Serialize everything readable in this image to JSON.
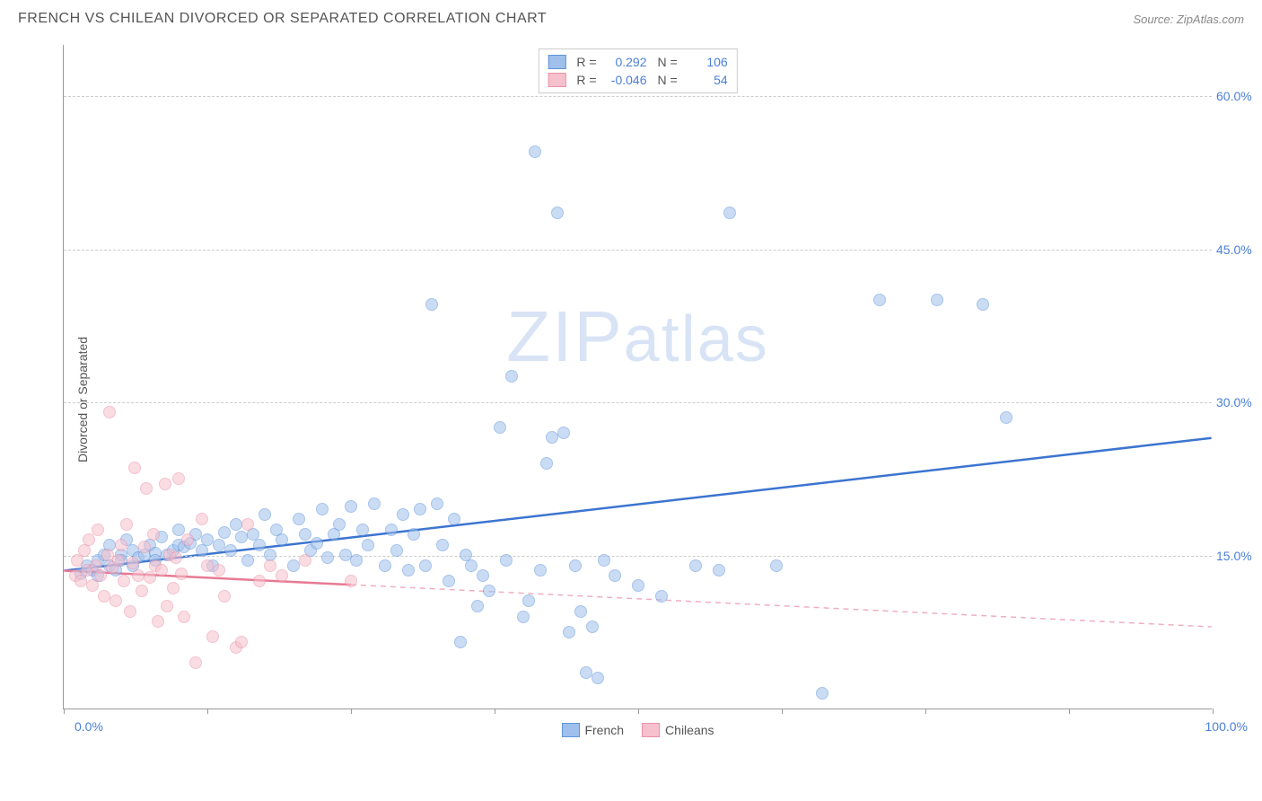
{
  "header": {
    "title": "FRENCH VS CHILEAN DIVORCED OR SEPARATED CORRELATION CHART",
    "source": "Source: ZipAtlas.com"
  },
  "chart": {
    "type": "scatter",
    "y_axis_title": "Divorced or Separated",
    "xlim": [
      0,
      100
    ],
    "ylim": [
      0,
      65
    ],
    "x_label_min": "0.0%",
    "x_label_max": "100.0%",
    "x_tick_positions": [
      0,
      12.5,
      25,
      37.5,
      50,
      62.5,
      75,
      87.5,
      100
    ],
    "y_gridlines": [
      {
        "value": 15,
        "label": "15.0%"
      },
      {
        "value": 30,
        "label": "30.0%"
      },
      {
        "value": 45,
        "label": "45.0%"
      },
      {
        "value": 60,
        "label": "60.0%"
      }
    ],
    "background_color": "#ffffff",
    "grid_color": "#cccccc",
    "axis_color": "#999999",
    "label_color": "#4a7fd8",
    "watermark": "ZIPatlas",
    "point_radius": 7,
    "point_opacity": 0.55,
    "series": [
      {
        "name": "French",
        "fill_color": "#9fc0ec",
        "stroke_color": "#5f94db",
        "trend_color": "#3c74d0",
        "trend_solid_until": 100,
        "trend": {
          "x1": 0,
          "y1": 13.5,
          "x2": 100,
          "y2": 26.5
        },
        "R": "0.292",
        "N": "106",
        "points": [
          [
            1.5,
            13.2
          ],
          [
            2,
            14
          ],
          [
            2.5,
            13.5
          ],
          [
            3,
            14.5
          ],
          [
            3,
            13
          ],
          [
            3.5,
            15
          ],
          [
            4,
            14
          ],
          [
            4,
            16
          ],
          [
            4.5,
            13.5
          ],
          [
            5,
            15
          ],
          [
            5,
            14.5
          ],
          [
            5.5,
            16.5
          ],
          [
            6,
            15.5
          ],
          [
            6,
            14
          ],
          [
            6.5,
            14.8
          ],
          [
            7,
            15
          ],
          [
            7.5,
            16
          ],
          [
            8,
            15.2
          ],
          [
            8,
            14.5
          ],
          [
            8.5,
            16.8
          ],
          [
            9,
            15
          ],
          [
            9.5,
            15.5
          ],
          [
            10,
            16
          ],
          [
            10,
            17.5
          ],
          [
            10.5,
            15.8
          ],
          [
            11,
            16.2
          ],
          [
            11.5,
            17
          ],
          [
            12,
            15.5
          ],
          [
            12.5,
            16.5
          ],
          [
            13,
            14
          ],
          [
            13.5,
            16
          ],
          [
            14,
            17.2
          ],
          [
            14.5,
            15.5
          ],
          [
            15,
            18
          ],
          [
            15.5,
            16.8
          ],
          [
            16,
            14.5
          ],
          [
            16.5,
            17
          ],
          [
            17,
            16
          ],
          [
            17.5,
            19
          ],
          [
            18,
            15
          ],
          [
            18.5,
            17.5
          ],
          [
            19,
            16.5
          ],
          [
            20,
            14
          ],
          [
            20.5,
            18.5
          ],
          [
            21,
            17
          ],
          [
            21.5,
            15.5
          ],
          [
            22,
            16.2
          ],
          [
            22.5,
            19.5
          ],
          [
            23,
            14.8
          ],
          [
            23.5,
            17
          ],
          [
            24,
            18
          ],
          [
            24.5,
            15
          ],
          [
            25,
            19.8
          ],
          [
            25.5,
            14.5
          ],
          [
            26,
            17.5
          ],
          [
            26.5,
            16
          ],
          [
            27,
            20
          ],
          [
            28,
            14
          ],
          [
            28.5,
            17.5
          ],
          [
            29,
            15.5
          ],
          [
            29.5,
            19
          ],
          [
            30,
            13.5
          ],
          [
            30.5,
            17
          ],
          [
            31,
            19.5
          ],
          [
            31.5,
            14
          ],
          [
            32,
            39.5
          ],
          [
            32.5,
            20
          ],
          [
            33,
            16
          ],
          [
            33.5,
            12.5
          ],
          [
            34,
            18.5
          ],
          [
            34.5,
            6.5
          ],
          [
            35,
            15
          ],
          [
            35.5,
            14
          ],
          [
            36,
            10
          ],
          [
            36.5,
            13
          ],
          [
            37,
            11.5
          ],
          [
            38,
            27.5
          ],
          [
            38.5,
            14.5
          ],
          [
            39,
            32.5
          ],
          [
            40,
            9
          ],
          [
            40.5,
            10.5
          ],
          [
            41,
            54.5
          ],
          [
            41.5,
            13.5
          ],
          [
            42,
            24
          ],
          [
            42.5,
            26.5
          ],
          [
            43,
            48.5
          ],
          [
            43.5,
            27
          ],
          [
            44,
            7.5
          ],
          [
            44.5,
            14
          ],
          [
            45,
            9.5
          ],
          [
            45.5,
            3.5
          ],
          [
            46,
            8
          ],
          [
            46.5,
            3
          ],
          [
            47,
            14.5
          ],
          [
            48,
            13
          ],
          [
            50,
            12
          ],
          [
            52,
            11
          ],
          [
            55,
            14
          ],
          [
            57,
            13.5
          ],
          [
            58,
            48.5
          ],
          [
            62,
            14
          ],
          [
            66,
            1.5
          ],
          [
            71,
            40
          ],
          [
            76,
            40
          ],
          [
            80,
            39.5
          ],
          [
            82,
            28.5
          ]
        ]
      },
      {
        "name": "Chileans",
        "fill_color": "#f7c0cd",
        "stroke_color": "#ea91a8",
        "trend_color": "#e77a95",
        "trend_solid_until": 25,
        "trend": {
          "x1": 0,
          "y1": 13.5,
          "x2": 100,
          "y2": 8.0
        },
        "R": "-0.046",
        "N": "54",
        "points": [
          [
            1,
            13
          ],
          [
            1.2,
            14.5
          ],
          [
            1.5,
            12.5
          ],
          [
            1.8,
            15.5
          ],
          [
            2,
            13.5
          ],
          [
            2.2,
            16.5
          ],
          [
            2.5,
            12
          ],
          [
            2.8,
            14
          ],
          [
            3,
            17.5
          ],
          [
            3.2,
            13
          ],
          [
            3.5,
            11
          ],
          [
            3.8,
            15
          ],
          [
            4,
            29
          ],
          [
            4.2,
            13.8
          ],
          [
            4.5,
            10.5
          ],
          [
            4.8,
            14.5
          ],
          [
            5,
            16
          ],
          [
            5.2,
            12.5
          ],
          [
            5.5,
            18
          ],
          [
            5.8,
            9.5
          ],
          [
            6,
            14.2
          ],
          [
            6.2,
            23.5
          ],
          [
            6.5,
            13
          ],
          [
            6.8,
            11.5
          ],
          [
            7,
            15.8
          ],
          [
            7.2,
            21.5
          ],
          [
            7.5,
            12.8
          ],
          [
            7.8,
            17
          ],
          [
            8,
            14
          ],
          [
            8.2,
            8.5
          ],
          [
            8.5,
            13.5
          ],
          [
            8.8,
            22
          ],
          [
            9,
            10
          ],
          [
            9.2,
            15
          ],
          [
            9.5,
            11.8
          ],
          [
            9.8,
            14.8
          ],
          [
            10,
            22.5
          ],
          [
            10.2,
            13.2
          ],
          [
            10.5,
            9
          ],
          [
            10.8,
            16.5
          ],
          [
            11.5,
            4.5
          ],
          [
            12,
            18.5
          ],
          [
            12.5,
            14
          ],
          [
            13,
            7
          ],
          [
            13.5,
            13.5
          ],
          [
            14,
            11
          ],
          [
            15,
            6
          ],
          [
            15.5,
            6.5
          ],
          [
            16,
            18
          ],
          [
            17,
            12.5
          ],
          [
            18,
            14
          ],
          [
            19,
            13
          ],
          [
            21,
            14.5
          ],
          [
            25,
            12.5
          ]
        ]
      }
    ],
    "legend_top": {
      "R_label": "R =",
      "N_label": "N ="
    },
    "legend_bottom": [
      {
        "label": "French",
        "fill": "#9fc0ec",
        "stroke": "#5f94db"
      },
      {
        "label": "Chileans",
        "fill": "#f7c0cd",
        "stroke": "#ea91a8"
      }
    ]
  }
}
